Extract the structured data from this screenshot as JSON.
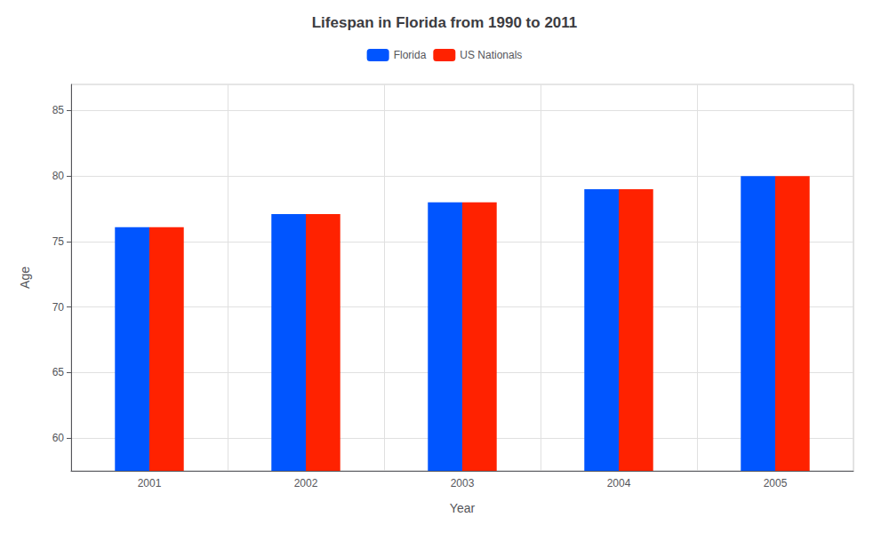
{
  "chart_data": {
    "type": "bar",
    "title": "Lifespan in Florida from 1990 to 2011",
    "x_label": "Year",
    "y_label": "Age",
    "categories": [
      "2001",
      "2002",
      "2003",
      "2004",
      "2005"
    ],
    "series": [
      {
        "name": "Florida",
        "color": "#0055ff",
        "values": [
          76.1,
          77.1,
          78.0,
          79.0,
          80.0
        ]
      },
      {
        "name": "US Nationals",
        "color": "#ff2200",
        "values": [
          76.1,
          77.1,
          78.0,
          79.0,
          80.0
        ]
      }
    ],
    "ylim": [
      57.5,
      87
    ],
    "yticks": [
      60,
      65,
      70,
      75,
      80,
      85
    ],
    "grid": true,
    "legend": "top"
  }
}
